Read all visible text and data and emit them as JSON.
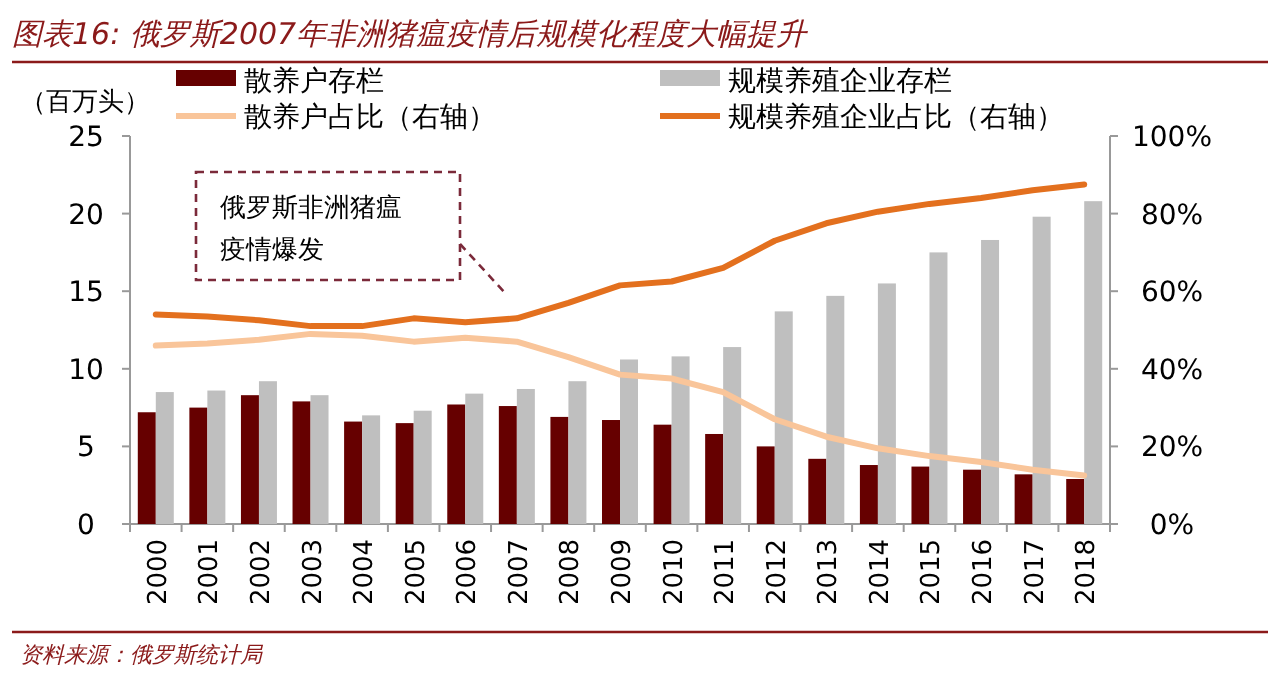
{
  "chart_data": {
    "type": "bar",
    "title": "图表16: 俄罗斯2007年非洲猪瘟疫情后规模化程度大幅提升",
    "ylabel": "（百万头）",
    "categories": [
      "2000",
      "2001",
      "2002",
      "2003",
      "2004",
      "2005",
      "2006",
      "2007",
      "2008",
      "2009",
      "2010",
      "2011",
      "2012",
      "2013",
      "2014",
      "2015",
      "2016",
      "2017",
      "2018"
    ],
    "series": [
      {
        "name": "散养户存栏",
        "color": "#660000",
        "values": [
          7.2,
          7.5,
          8.3,
          7.9,
          6.6,
          6.5,
          7.7,
          7.6,
          6.9,
          6.7,
          6.4,
          5.8,
          5.0,
          4.2,
          3.8,
          3.7,
          3.5,
          3.2,
          2.9
        ]
      },
      {
        "name": "规模养殖企业存栏",
        "color": "#bfbfbf",
        "values": [
          8.5,
          8.6,
          9.2,
          8.3,
          7.0,
          7.3,
          8.4,
          8.7,
          9.2,
          10.6,
          10.8,
          11.4,
          13.7,
          14.7,
          15.5,
          17.5,
          18.3,
          19.8,
          20.8
        ]
      },
      {
        "name": "散养户占比（右轴）",
        "type": "line",
        "axis": "y2",
        "color": "#f9c59a",
        "values": [
          46,
          46.5,
          47.5,
          49,
          48.5,
          47,
          48,
          47,
          43,
          38.5,
          37.5,
          34,
          27,
          22.5,
          19.5,
          17.5,
          16,
          14,
          12.5
        ]
      },
      {
        "name": "规模养殖企业占比（右轴）",
        "type": "line",
        "axis": "y2",
        "color": "#e3701e",
        "values": [
          54,
          53.5,
          52.5,
          51,
          51,
          53,
          52,
          53,
          57,
          61.5,
          62.5,
          66,
          73,
          77.5,
          80.5,
          82.5,
          84,
          86,
          87.5
        ]
      }
    ],
    "ylim": [
      0,
      25
    ],
    "yticks": [
      0,
      5,
      10,
      15,
      20,
      25
    ],
    "y2lim": [
      0,
      100
    ],
    "y2ticks": [
      {
        "value": 0,
        "label": "0%"
      },
      {
        "value": 20,
        "label": "20%"
      },
      {
        "value": 40,
        "label": "40%"
      },
      {
        "value": 60,
        "label": "60%"
      },
      {
        "value": 80,
        "label": "80%"
      },
      {
        "value": 100,
        "label": "100%"
      }
    ],
    "legend": "top",
    "annotations": [
      "俄罗斯非洲猪瘟疫情爆发",
      "资料来源：俄罗斯统计局"
    ]
  }
}
